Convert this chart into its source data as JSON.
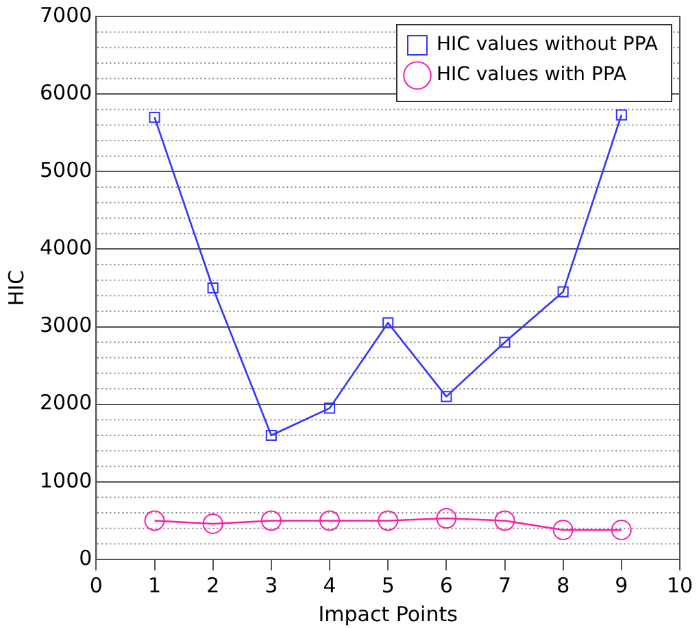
{
  "chart_data": {
    "type": "line",
    "xlabel": "Impact Points",
    "ylabel": "HIC",
    "x": [
      1,
      2,
      3,
      4,
      5,
      6,
      7,
      8,
      9
    ],
    "series": [
      {
        "name": "HIC values without PPA",
        "color": "#3333ff",
        "marker": "square",
        "values": [
          5700,
          3500,
          1600,
          1950,
          3050,
          2100,
          2800,
          3450,
          5730
        ]
      },
      {
        "name": "HIC values with PPA",
        "color": "#ff1aa8",
        "marker": "circle",
        "values": [
          500,
          460,
          500,
          500,
          500,
          530,
          500,
          380,
          380
        ]
      }
    ],
    "xlim": [
      0,
      10
    ],
    "xticks": [
      0,
      1,
      2,
      3,
      4,
      5,
      6,
      7,
      8,
      9,
      10
    ],
    "ylim": [
      0,
      7000
    ],
    "yticks": [
      0,
      {
        "value": 200,
        "label": null
      },
      {
        "value": 400,
        "label": null
      },
      {
        "value": 600,
        "label": null
      },
      {
        "value": 800,
        "label": null
      },
      1000,
      {
        "value": 1200,
        "label": null
      },
      {
        "value": 1400,
        "label": null
      },
      {
        "value": 1600,
        "label": null
      },
      {
        "value": 1800,
        "label": null
      },
      2000,
      {
        "value": 2200,
        "label": null
      },
      {
        "value": 2400,
        "label": null
      },
      {
        "value": 2600,
        "label": null
      },
      {
        "value": 2800,
        "label": null
      },
      3000,
      {
        "value": 3200,
        "label": null
      },
      {
        "value": 3400,
        "label": null
      },
      {
        "value": 3600,
        "label": null
      },
      {
        "value": 3800,
        "label": null
      },
      4000,
      {
        "value": 4200,
        "label": null
      },
      {
        "value": 4400,
        "label": null
      },
      {
        "value": 4600,
        "label": null
      },
      {
        "value": 4800,
        "label": null
      },
      5000,
      {
        "value": 5200,
        "label": null
      },
      {
        "value": 5400,
        "label": null
      },
      {
        "value": 5600,
        "label": null
      },
      {
        "value": 5800,
        "label": null
      },
      6000,
      {
        "value": 6200,
        "label": null
      },
      {
        "value": 6400,
        "label": null
      },
      {
        "value": 6600,
        "label": null
      },
      {
        "value": 6800,
        "label": null
      },
      7000
    ],
    "grid": "y",
    "legend": "top right",
    "line_style": "solid"
  }
}
